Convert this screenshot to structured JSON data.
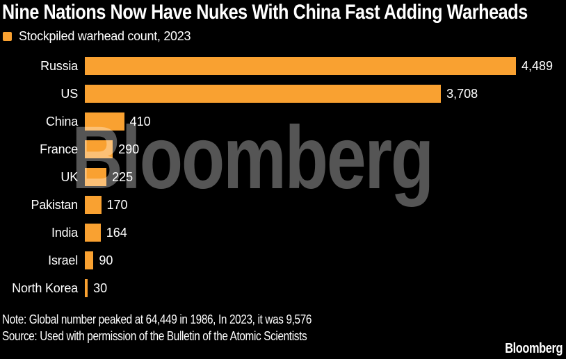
{
  "meta": {
    "background_color": "#000000",
    "text_color": "#FFFFFF",
    "accent_orange": "#F9A131",
    "watermark_color": "#555555"
  },
  "header": {
    "title": "Nine Nations Now Have Nukes With China Fast Adding Warheads"
  },
  "legend": {
    "label": "Stockpiled warhead count, 2023"
  },
  "chart_data": {
    "type": "bar",
    "orientation": "horizontal",
    "title": "Nine Nations Now Have Nukes With China Fast Adding Warheads",
    "legend_label": "Stockpiled warhead count, 2023",
    "categories": [
      "Russia",
      "US",
      "China",
      "France",
      "UK",
      "Pakistan",
      "India",
      "Israel",
      "North Korea"
    ],
    "values": [
      4489,
      3708,
      410,
      290,
      225,
      170,
      164,
      90,
      30
    ],
    "value_labels": [
      "4,489",
      "3,708",
      "410",
      "290",
      "225",
      "170",
      "164",
      "90",
      "30"
    ],
    "xlim": [
      0,
      4489
    ],
    "grid": false,
    "bar_color": "#F9A131",
    "legend_position": "top-left"
  },
  "watermark": {
    "text": "Bloomberg"
  },
  "footer": {
    "note": "Note: Global number peaked at 64,449 in 1986, In 2023, it was 9,576",
    "source": "Source: Used with permission of the Bulletin of the Atomic Scientists",
    "logo": "Bloomberg"
  }
}
